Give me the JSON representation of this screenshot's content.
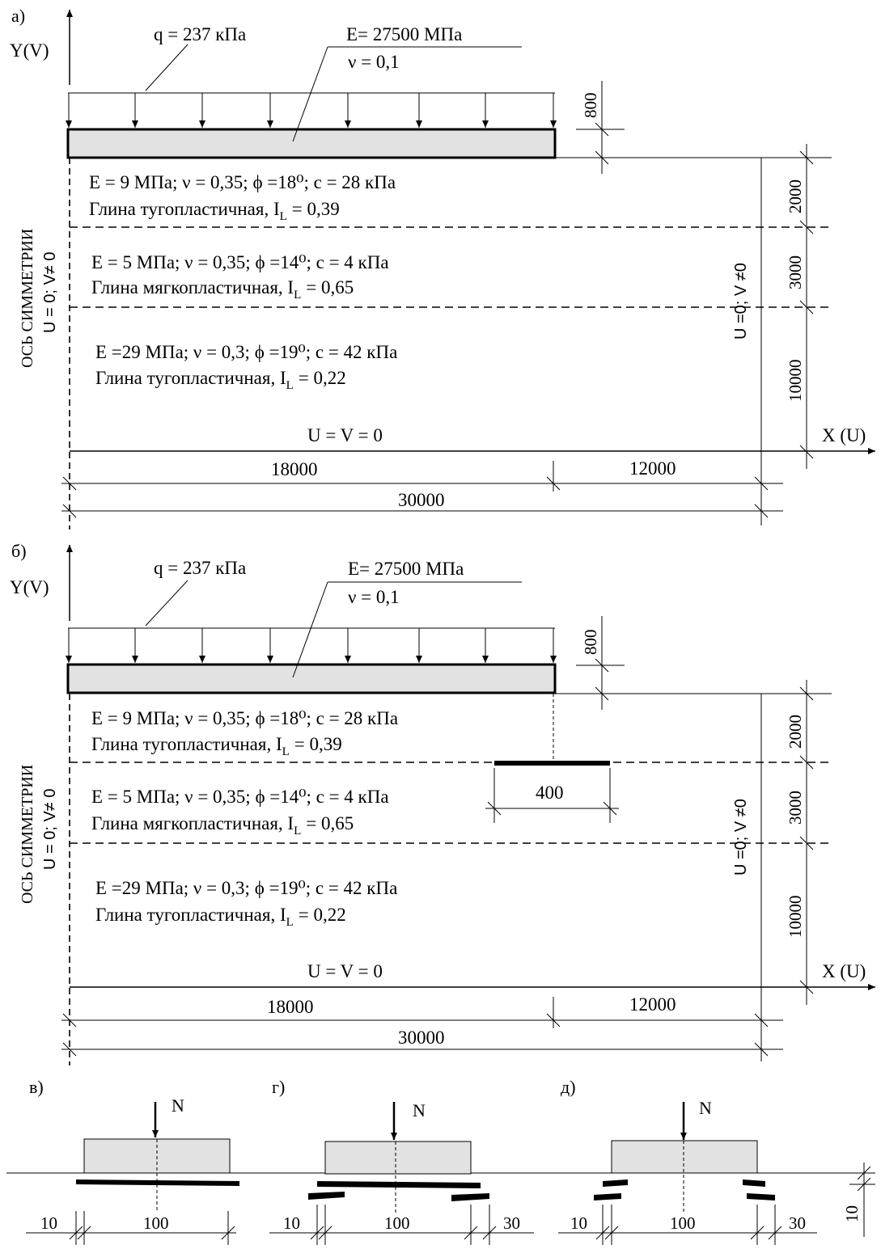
{
  "panels": [
    {
      "letter": "а)",
      "y_axis": "Y(V)",
      "x_axis": "X (U)",
      "load": "q = 237 кПа",
      "slab_E": "E= 27500 МПа",
      "slab_nu": "ν = 0,1",
      "slab_thickness": "800",
      "sym_axis": "ОСЬ СИММЕТРИИ",
      "left_bc": "U = 0; V≠ 0",
      "right_bc": "U =0; V ≠0",
      "bottom_bc": "U = V = 0",
      "layers": [
        {
          "props": "E = 9 МПа; ν = 0,35; ϕ =18⁰; c = 28 кПа",
          "name": "Глина тугопластичная, I",
          "il": "= 0,39",
          "thickness": "2000"
        },
        {
          "props": "E = 5 МПа; ν = 0,35; ϕ =14⁰; c = 4 кПа",
          "name": "Глина мягкопластичная, I",
          "il": "= 0,65",
          "thickness": "3000"
        },
        {
          "props": "E =29 МПа; ν = 0,3; ϕ =19⁰; c = 42 кПа",
          "name": "Глина тугопластичная, I",
          "il": "= 0,22",
          "thickness": "10000"
        }
      ],
      "dim_slab_width": "18000",
      "dim_rest": "12000",
      "dim_total": "30000"
    },
    {
      "letter": "б)",
      "y_axis": "Y(V)",
      "x_axis": "X (U)",
      "load": "q = 237 кПа",
      "slab_E": "E= 27500 МПа",
      "slab_nu": "ν = 0,1",
      "slab_thickness": "800",
      "sym_axis": "ОСЬ СИММЕТРИИ",
      "left_bc": "U = 0; V≠ 0",
      "right_bc": "U =0; V ≠0",
      "bottom_bc": "U = V = 0",
      "layers": [
        {
          "props": "E = 9 МПа; ν = 0,35; ϕ =18⁰; c = 28 кПа",
          "name": "Глина тугопластичная, I",
          "il": "= 0,39",
          "thickness": "2000"
        },
        {
          "props": "E = 5 МПа; ν = 0,35; ϕ =14⁰; c = 4 кПа",
          "name": "Глина мягкопластичная, I",
          "il": "= 0,65",
          "thickness": "3000"
        },
        {
          "props": "E =29 МПа; ν = 0,3; ϕ =19⁰; c = 42 кПа",
          "name": "Глина тугопластичная, I",
          "il": "= 0,22",
          "thickness": "10000"
        }
      ],
      "reinforcement_width": "400",
      "dim_slab_width": "18000",
      "dim_rest": "12000",
      "dim_total": "30000"
    }
  ],
  "il_subscript": "L",
  "details": [
    {
      "letter": "в)",
      "force": "N",
      "dim_left": "10",
      "dim_mid": "100"
    },
    {
      "letter": "г)",
      "force": "N",
      "dim_left": "10",
      "dim_mid": "100",
      "dim_right": "30"
    },
    {
      "letter": "д)",
      "force": "N",
      "dim_left": "10",
      "dim_mid": "100",
      "dim_right": "30"
    }
  ],
  "vertical_gap_dim": "10",
  "colors": {
    "slab_fill": "#e2e2e2",
    "line": "#000000"
  }
}
